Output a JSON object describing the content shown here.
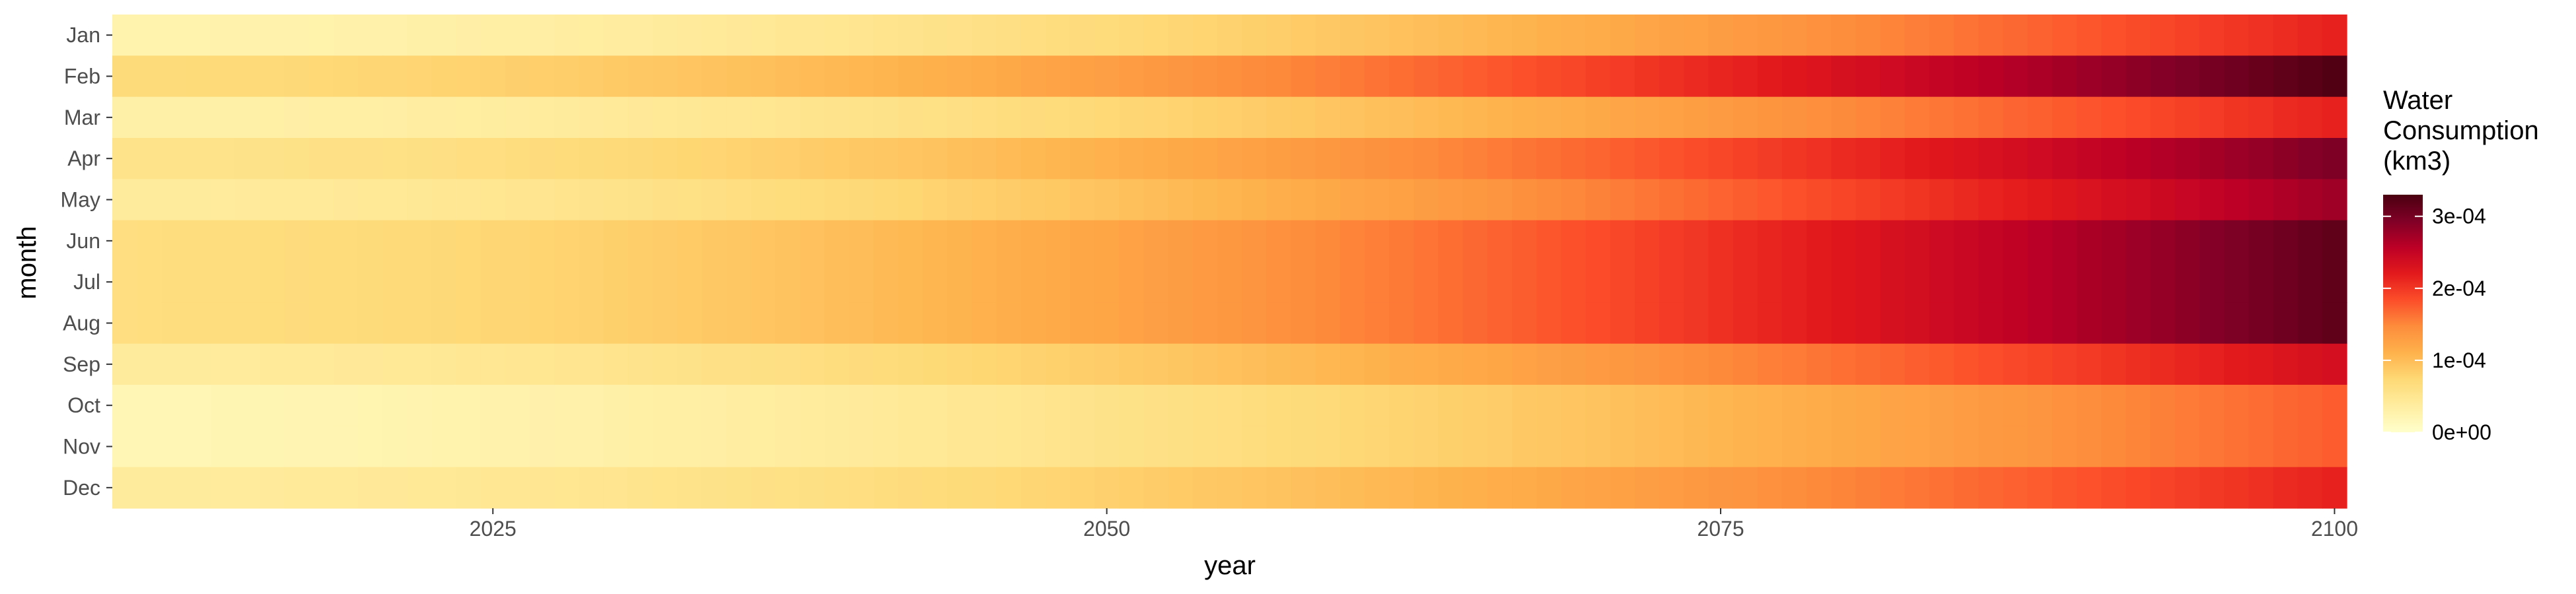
{
  "chart_data": {
    "type": "heatmap",
    "title": "",
    "xlabel": "year",
    "ylabel": "month",
    "x_range": [
      2010,
      2100
    ],
    "x_ticks": [
      2025,
      2050,
      2075,
      2100
    ],
    "x_tick_labels": [
      "2025",
      "2050",
      "2075",
      "2100"
    ],
    "months": [
      "Jan",
      "Feb",
      "Mar",
      "Apr",
      "May",
      "Jun",
      "Jul",
      "Aug",
      "Sep",
      "Oct",
      "Nov",
      "Dec"
    ],
    "years": [
      2010,
      2011,
      2012,
      2013,
      2014,
      2015,
      2016,
      2017,
      2018,
      2019,
      2020,
      2021,
      2022,
      2023,
      2024,
      2025,
      2026,
      2027,
      2028,
      2029,
      2030,
      2031,
      2032,
      2033,
      2034,
      2035,
      2036,
      2037,
      2038,
      2039,
      2040,
      2041,
      2042,
      2043,
      2044,
      2045,
      2046,
      2047,
      2048,
      2049,
      2050,
      2051,
      2052,
      2053,
      2054,
      2055,
      2056,
      2057,
      2058,
      2059,
      2060,
      2061,
      2062,
      2063,
      2064,
      2065,
      2066,
      2067,
      2068,
      2069,
      2070,
      2071,
      2072,
      2073,
      2074,
      2075,
      2076,
      2077,
      2078,
      2079,
      2080,
      2081,
      2082,
      2083,
      2084,
      2085,
      2086,
      2087,
      2088,
      2089,
      2090,
      2091,
      2092,
      2093,
      2094,
      2095,
      2096,
      2097,
      2098,
      2099,
      2100
    ],
    "value_model": "Approximate reading of cell colors: value(month, year) = base_2010 + (end_2100 - base_2010) * ((year - 2010) / 90)^1.8 (km3)",
    "month_base_2010": [
      2.5e-05,
      7e-05,
      3e-05,
      5.5e-05,
      4e-05,
      6.5e-05,
      6.5e-05,
      6.5e-05,
      4e-05,
      2e-05,
      2e-05,
      4e-05
    ],
    "month_end_2100": [
      0.000215,
      0.000325,
      0.000215,
      0.000295,
      0.000275,
      0.000315,
      0.000315,
      0.000315,
      0.000235,
      0.000175,
      0.000175,
      0.000215
    ],
    "legend": {
      "title_lines": [
        "Water",
        "Consumption",
        "(km3)"
      ],
      "min": 0,
      "max": 0.00033,
      "breaks": [
        0,
        0.0001,
        0.0002,
        0.0003
      ],
      "break_labels": [
        "0e+00",
        "1e-04",
        "2e-04",
        "3e-04"
      ],
      "colors": [
        "#ffffcc",
        "#ffeda0",
        "#fed976",
        "#feb24c",
        "#fd8d3c",
        "#fc4e2a",
        "#e31a1c",
        "#bd0026",
        "#800026",
        "#4a0010"
      ]
    }
  }
}
